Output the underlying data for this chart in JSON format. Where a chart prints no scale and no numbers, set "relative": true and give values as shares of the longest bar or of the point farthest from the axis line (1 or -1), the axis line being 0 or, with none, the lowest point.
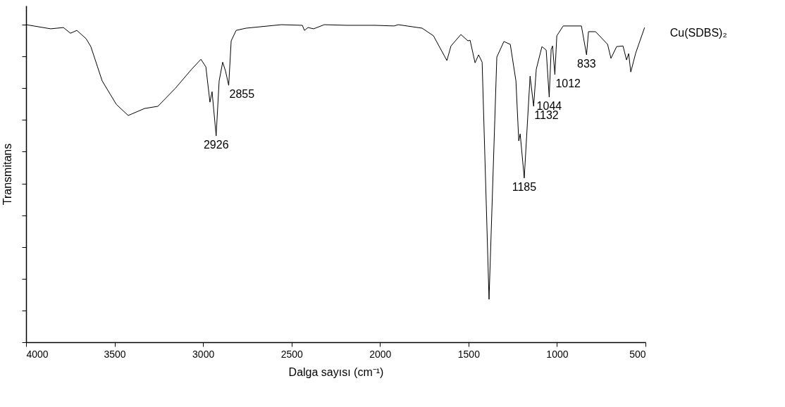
{
  "chart_data": {
    "type": "line",
    "xlabel": "Dalga sayısı (cm⁻¹)",
    "ylabel": "Transmitans",
    "relative": true,
    "xlim": [
      4000,
      500
    ],
    "xticks": [
      4000,
      3500,
      3000,
      2500,
      2000,
      1500,
      1000,
      500
    ],
    "tick_labels": "x",
    "grid": false,
    "legend": false,
    "marker": "none",
    "line_style": "solid",
    "series": [
      {
        "name": "Cu(SDBS)₂",
        "color": "#000000",
        "x": [
          4000,
          3861,
          3789,
          3749,
          3713,
          3661,
          3634,
          3570,
          3490,
          3423,
          3331,
          3255,
          3156,
          3064,
          3012,
          2984,
          2961,
          2949,
          2926,
          2909,
          2889,
          2873,
          2855,
          2841,
          2813,
          2757,
          2558,
          2439,
          2427,
          2407,
          2375,
          2315,
          2188,
          2029,
          1921,
          1897,
          1762,
          1698,
          1622,
          1599,
          1543,
          1503,
          1491,
          1463,
          1443,
          1423,
          1384,
          1340,
          1300,
          1264,
          1232,
          1216,
          1208,
          1185,
          1152,
          1132,
          1117,
          1085,
          1061,
          1044,
          1033,
          1025,
          1012,
          1001,
          965,
          862,
          833,
          822,
          782,
          714,
          695,
          663,
          627,
          607,
          595,
          583,
          555,
          505
        ],
        "values": [
          1.0,
          0.987,
          0.991,
          0.973,
          0.982,
          0.956,
          0.931,
          0.823,
          0.749,
          0.714,
          0.736,
          0.743,
          0.8,
          0.86,
          0.891,
          0.867,
          0.756,
          0.789,
          0.65,
          0.823,
          0.882,
          0.854,
          0.809,
          0.949,
          0.982,
          0.989,
          1.0,
          0.998,
          0.982,
          0.991,
          0.987,
          1.0,
          0.998,
          0.998,
          0.996,
          1.0,
          0.989,
          0.965,
          0.887,
          0.933,
          0.969,
          0.949,
          0.951,
          0.88,
          0.905,
          0.882,
          0.135,
          0.898,
          0.947,
          0.938,
          0.823,
          0.634,
          0.656,
          0.517,
          0.838,
          0.743,
          0.86,
          0.931,
          0.92,
          0.772,
          0.922,
          0.933,
          0.843,
          0.965,
          0.996,
          0.996,
          0.905,
          0.978,
          0.978,
          0.938,
          0.894,
          0.931,
          0.933,
          0.889,
          0.909,
          0.851,
          0.911,
          0.991
        ]
      }
    ],
    "annotations": [
      {
        "text": "2926",
        "x": 2926,
        "y": 0.65
      },
      {
        "text": "2855",
        "x": 2855,
        "y": 0.809
      },
      {
        "text": "1185",
        "x": 1185,
        "y": 0.517
      },
      {
        "text": "1132",
        "x": 1132,
        "y": 0.743
      },
      {
        "text": "1044",
        "x": 1044,
        "y": 0.772
      },
      {
        "text": "1012",
        "x": 1012,
        "y": 0.843
      },
      {
        "text": "833",
        "x": 833,
        "y": 0.905
      }
    ]
  }
}
